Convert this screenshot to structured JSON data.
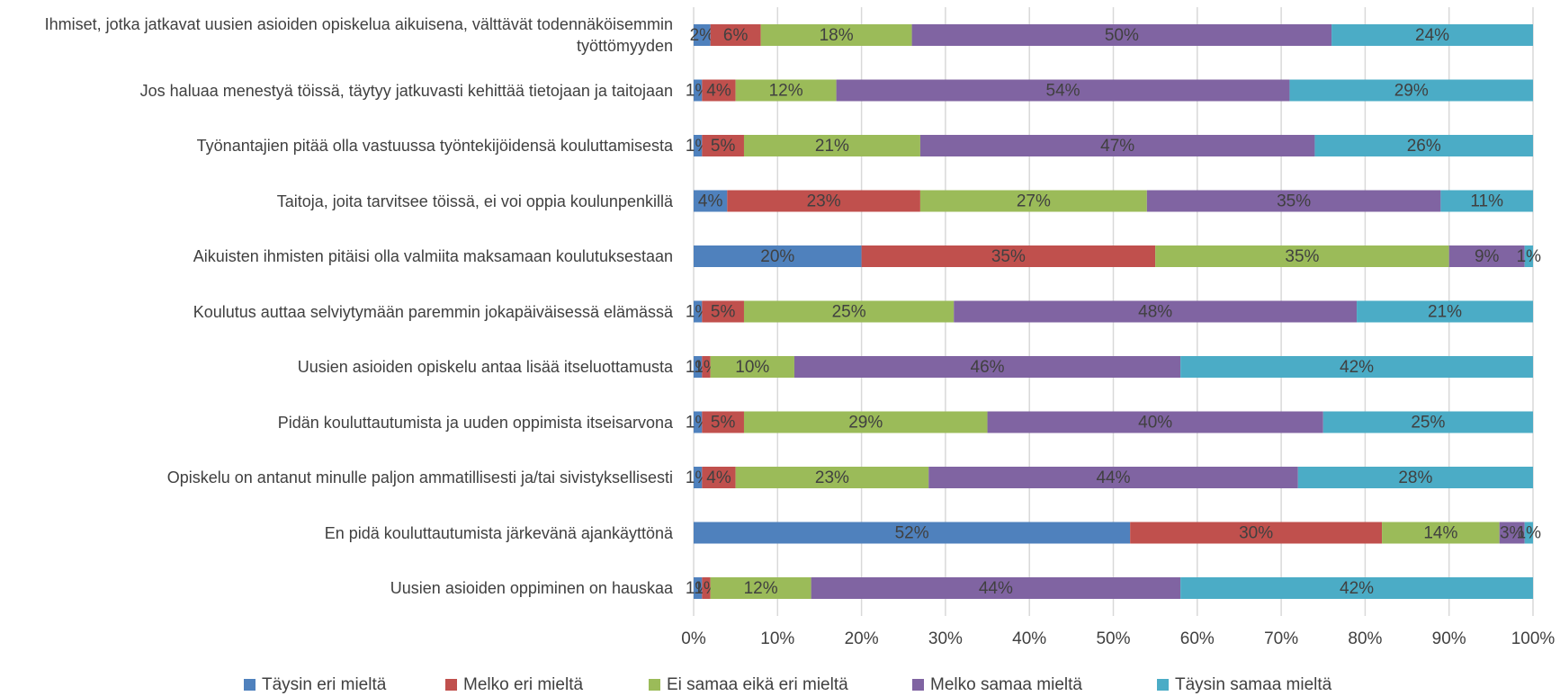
{
  "chart_data": {
    "type": "stacked_bar_horizontal",
    "categories": [
      "Ihmiset, jotka jatkavat uusien asioiden opiskelua aikuisena, välttävät todennäköisemmin työttömyyden",
      "Jos haluaa menestyä töissä, täytyy jatkuvasti kehittää tietojaan ja taitojaan",
      "Työnantajien pitää olla vastuussa työntekijöidensä kouluttamisesta",
      "Taitoja, joita tarvitsee töissä, ei voi oppia koulunpenkillä",
      "Aikuisten ihmisten pitäisi olla valmiita maksamaan koulutuksestaan",
      "Koulutus auttaa selviytymään paremmin jokapäiväisessä elämässä",
      "Uusien asioiden opiskelu antaa lisää itseluottamusta",
      "Pidän kouluttautumista ja uuden oppimista itseisarvona",
      "Opiskelu on antanut minulle paljon ammatillisesti ja/tai sivistyksellisesti",
      "En pidä kouluttautumista järkevänä ajankäyttönä",
      "Uusien asioiden oppiminen on hauskaa"
    ],
    "series": [
      {
        "name": "Täysin eri mieltä",
        "color": "#4f81bd",
        "values": [
          2,
          1,
          1,
          4,
          20,
          1,
          1,
          1,
          1,
          52,
          1
        ],
        "value_labels": [
          "2%",
          "1%",
          "1%",
          "4%",
          "20%",
          "1%",
          "1%",
          "1%",
          "1%",
          "52%",
          "1%"
        ]
      },
      {
        "name": "Melko eri mieltä",
        "color": "#c0504d",
        "values": [
          6,
          4,
          5,
          23,
          35,
          5,
          1,
          5,
          4,
          30,
          1
        ],
        "value_labels": [
          "6%",
          "4%",
          "5%",
          "23%",
          "35%",
          "5%",
          "1%",
          "5%",
          "4%",
          "30%",
          "1%"
        ]
      },
      {
        "name": "Ei samaa eikä eri mieltä",
        "color": "#9bbb59",
        "values": [
          18,
          12,
          21,
          27,
          35,
          25,
          10,
          29,
          23,
          14,
          12
        ],
        "value_labels": [
          "18%",
          "12%",
          "21%",
          "27%",
          "35%",
          "25%",
          "10%",
          "29%",
          "23%",
          "14%",
          "12%"
        ]
      },
      {
        "name": "Melko samaa mieltä",
        "color": "#8064a2",
        "values": [
          50,
          54,
          47,
          35,
          9,
          48,
          46,
          40,
          44,
          3,
          44
        ],
        "value_labels": [
          "50%",
          "54%",
          "47%",
          "35%",
          "9%",
          "48%",
          "46%",
          "40%",
          "44%",
          "3%",
          "44%"
        ]
      },
      {
        "name": "Täysin samaa mieltä",
        "color": "#4bacc6",
        "values": [
          24,
          29,
          26,
          11,
          1,
          21,
          42,
          25,
          28,
          1,
          42
        ],
        "value_labels": [
          "24%",
          "29%",
          "26%",
          "11%",
          "1%",
          "21%",
          "42%",
          "25%",
          "28%",
          "1%",
          "42%"
        ]
      }
    ],
    "xlim": [
      0,
      100
    ],
    "xticks": [
      {
        "value": 0,
        "label": "0%"
      },
      {
        "value": 10,
        "label": "10%"
      },
      {
        "value": 20,
        "label": "20%"
      },
      {
        "value": 30,
        "label": "30%"
      },
      {
        "value": 40,
        "label": "40%"
      },
      {
        "value": 50,
        "label": "50%"
      },
      {
        "value": 60,
        "label": "60%"
      },
      {
        "value": 70,
        "label": "70%"
      },
      {
        "value": 80,
        "label": "80%"
      },
      {
        "value": 90,
        "label": "90%"
      },
      {
        "value": 100,
        "label": "100%"
      }
    ],
    "grid": true,
    "legend": "bottom"
  }
}
